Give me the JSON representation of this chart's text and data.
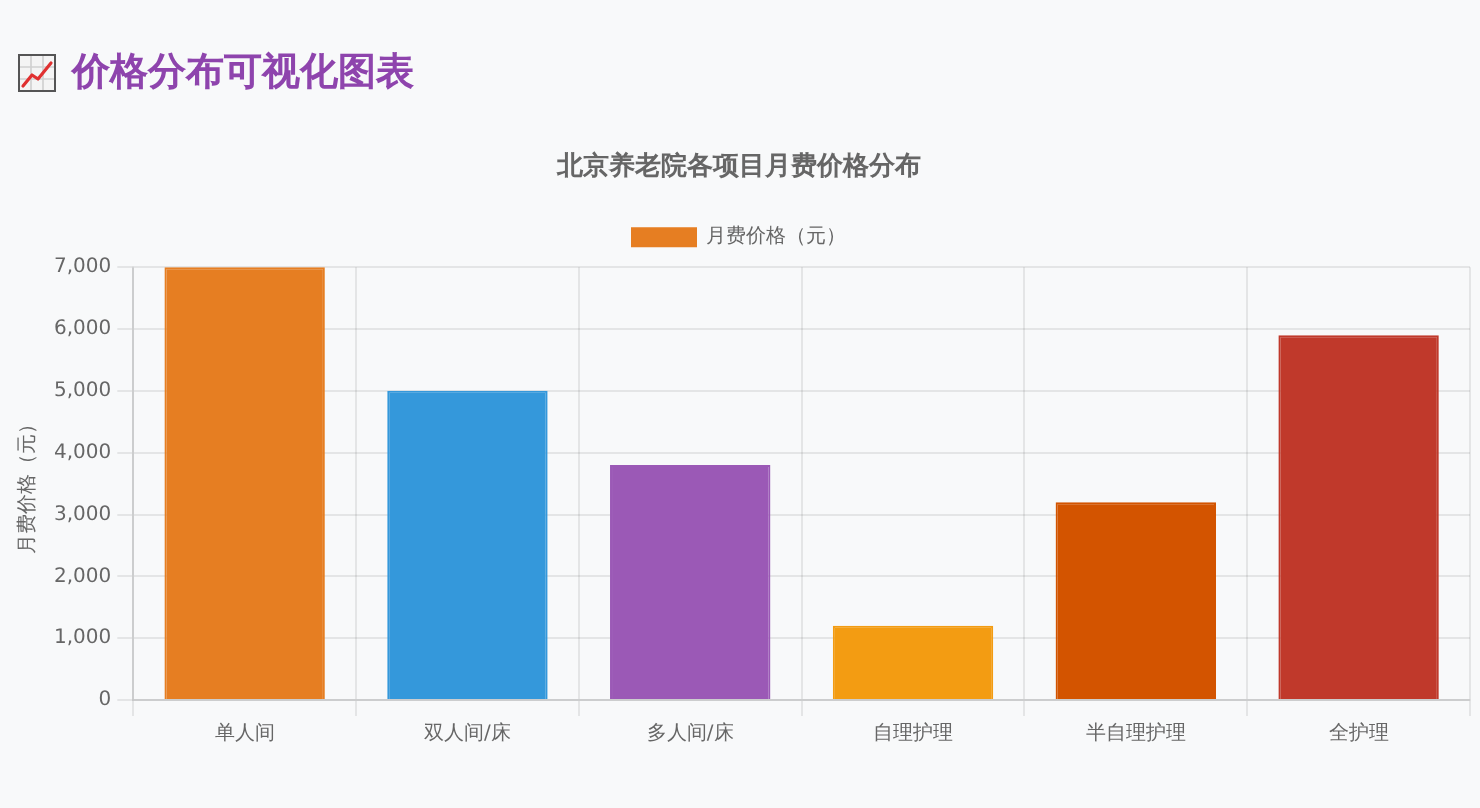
{
  "chart_data": {
    "type": "bar",
    "title": "价格分布可视化图表",
    "subtitle": "北京养老院各项目月费价格分布",
    "ylabel": "月费价格（元）",
    "categories": [
      "单人间",
      "双人间/床",
      "多人间/床",
      "自理护理",
      "半自理护理",
      "全护理"
    ],
    "series": [
      {
        "name": "月费价格（元）",
        "colors": [
          "#e67e22",
          "#3498db",
          "#9b59b6",
          "#f39c12",
          "#d35400",
          "#c0392b"
        ],
        "values": [
          7000,
          5000,
          3800,
          1200,
          3200,
          5900
        ]
      }
    ],
    "ylim": [
      0,
      7000
    ],
    "yticks": [
      0,
      {
        "value": 1000,
        "label": "1,000"
      },
      {
        "value": 2000,
        "label": "2,000"
      },
      {
        "value": 3000,
        "label": "3,000"
      },
      {
        "value": 4000,
        "label": "4,000"
      },
      {
        "value": 5000,
        "label": "5,000"
      },
      {
        "value": 6000,
        "label": "6,000"
      },
      {
        "value": 7000,
        "label": "7,000"
      }
    ],
    "grid": true,
    "legend": "top"
  }
}
